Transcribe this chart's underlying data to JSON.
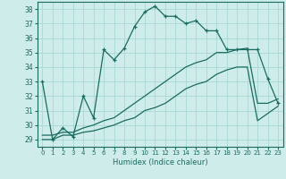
{
  "xlabel": "Humidex (Indice chaleur)",
  "bg_color": "#ceecea",
  "grid_color": "#a8d8d4",
  "line_color": "#1a6b60",
  "xlim": [
    -0.5,
    23.5
  ],
  "ylim": [
    28.5,
    38.5
  ],
  "xticks": [
    0,
    1,
    2,
    3,
    4,
    5,
    6,
    7,
    8,
    9,
    10,
    11,
    12,
    13,
    14,
    15,
    16,
    17,
    18,
    19,
    20,
    21,
    22,
    23
  ],
  "yticks": [
    29,
    30,
    31,
    32,
    33,
    34,
    35,
    36,
    37,
    38
  ],
  "series1_x": [
    0,
    1,
    2,
    3,
    4,
    5,
    6,
    7,
    8,
    9,
    10,
    11,
    12,
    13,
    14,
    15,
    16,
    17,
    18,
    19,
    20,
    21,
    22,
    23
  ],
  "series1_y": [
    33.0,
    29.0,
    29.8,
    29.2,
    32.0,
    30.5,
    35.2,
    34.5,
    35.3,
    36.8,
    37.8,
    38.2,
    37.5,
    37.5,
    37.0,
    37.2,
    36.5,
    36.5,
    35.2,
    35.2,
    35.2,
    35.2,
    33.2,
    31.5
  ],
  "series2_x": [
    0,
    1,
    2,
    3,
    4,
    5,
    6,
    7,
    8,
    9,
    10,
    11,
    12,
    13,
    14,
    15,
    16,
    17,
    18,
    19,
    20,
    21,
    22,
    23
  ],
  "series2_y": [
    29.3,
    29.3,
    29.5,
    29.5,
    29.8,
    30.0,
    30.3,
    30.5,
    31.0,
    31.5,
    32.0,
    32.5,
    33.0,
    33.5,
    34.0,
    34.3,
    34.5,
    35.0,
    35.0,
    35.2,
    35.3,
    31.5,
    31.5,
    31.8
  ],
  "series3_x": [
    0,
    1,
    2,
    3,
    4,
    5,
    6,
    7,
    8,
    9,
    10,
    11,
    12,
    13,
    14,
    15,
    16,
    17,
    18,
    19,
    20,
    21,
    22,
    23
  ],
  "series3_y": [
    29.0,
    29.0,
    29.3,
    29.3,
    29.5,
    29.6,
    29.8,
    30.0,
    30.3,
    30.5,
    31.0,
    31.2,
    31.5,
    32.0,
    32.5,
    32.8,
    33.0,
    33.5,
    33.8,
    34.0,
    34.0,
    30.3,
    30.8,
    31.3
  ]
}
